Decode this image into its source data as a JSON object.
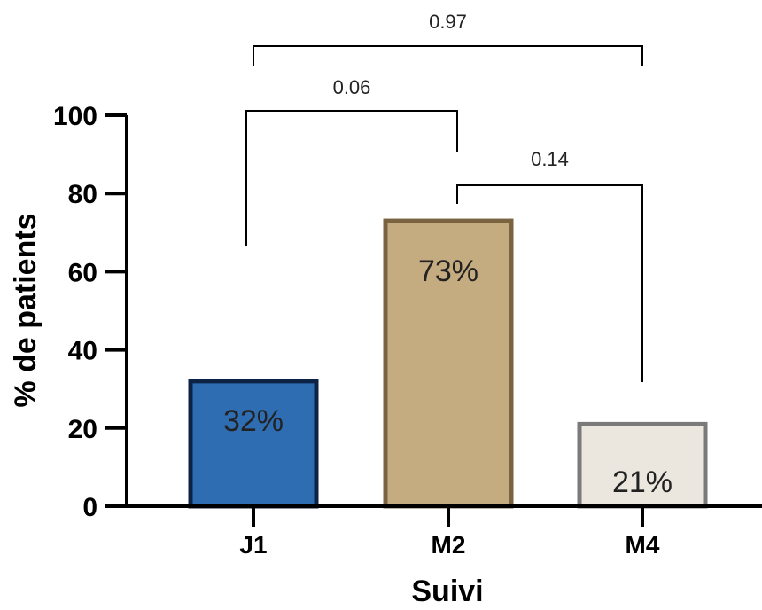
{
  "chart_data": {
    "type": "bar",
    "categories": [
      "J1",
      "M2",
      "M4"
    ],
    "values": [
      32,
      73,
      21
    ],
    "data_labels": [
      "32%",
      "73%",
      "21%"
    ],
    "xlabel": "Suivi",
    "ylabel": "% de patients",
    "ylim": [
      0,
      100
    ],
    "yticks": [
      "0",
      "20",
      "40",
      "60",
      "80",
      "100"
    ],
    "grid": false,
    "colors": {
      "fill": [
        "#2f6db3",
        "#c4ab80",
        "#ebe7df"
      ],
      "stroke": [
        "#0d2346",
        "#7a6340",
        "#7a7a7a"
      ]
    },
    "comparisons": [
      {
        "from": "J1",
        "to": "M2",
        "p": "0.06"
      },
      {
        "from": "M2",
        "to": "M4",
        "p": "0.14"
      },
      {
        "from": "J1",
        "to": "M4",
        "p": "0.97"
      }
    ]
  }
}
